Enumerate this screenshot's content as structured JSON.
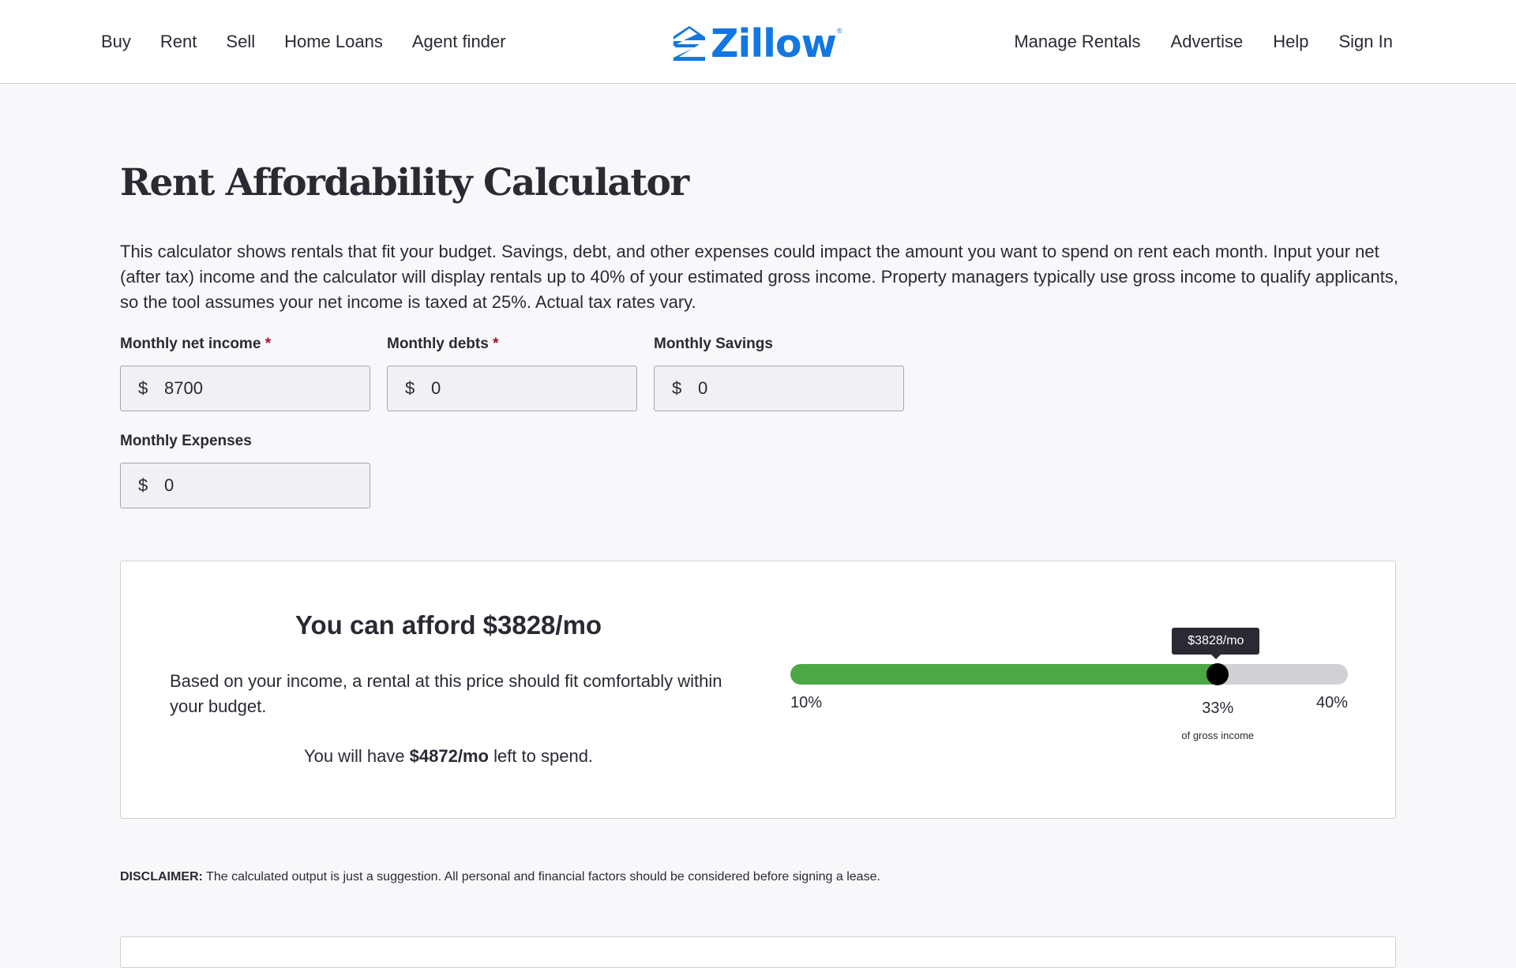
{
  "nav": {
    "left": [
      "Buy",
      "Rent",
      "Sell",
      "Home Loans",
      "Agent finder"
    ],
    "right": [
      "Manage Rentals",
      "Advertise",
      "Help",
      "Sign In"
    ],
    "logo_text": "Zillow",
    "logo_reg": "®"
  },
  "page": {
    "title": "Rent Affordability Calculator",
    "intro": "This calculator shows rentals that fit your budget. Savings, debt, and other expenses could impact the amount you want to spend on rent each month. Input your net (after tax) income and the calculator will display rentals up to 40% of your estimated gross income. Property managers typically use gross income to qualify applicants, so the tool assumes your net income is taxed at 25%. Actual tax rates vary."
  },
  "fields": {
    "net_income": {
      "label": "Monthly net income",
      "required": "*",
      "currency": "$",
      "value": "8700"
    },
    "debts": {
      "label": "Monthly debts",
      "required": "*",
      "currency": "$",
      "value": "0"
    },
    "savings": {
      "label": "Monthly Savings",
      "currency": "$",
      "value": "0"
    },
    "expenses": {
      "label": "Monthly Expenses",
      "currency": "$",
      "value": "0"
    }
  },
  "result": {
    "title": "You can afford $3828/mo",
    "description": "Based on your income, a rental at this price should fit comfortably within your budget.",
    "left_prefix": "You will have ",
    "left_amount": "$4872/mo",
    "left_suffix": " left to spend."
  },
  "slider": {
    "tooltip": "$3828/mo",
    "min_label": "10%",
    "max_label": "40%",
    "current_label": "33%",
    "current_sublabel": "of gross income",
    "min": 10,
    "max": 40,
    "value": 33,
    "fill_color": "#4ba844"
  },
  "disclaimer": {
    "label": "DISCLAIMER:",
    "text": " The calculated output is just a suggestion. All personal and financial factors should be considered before signing a lease."
  },
  "colors": {
    "brand": "#1277e1",
    "required": "#a7102a"
  }
}
